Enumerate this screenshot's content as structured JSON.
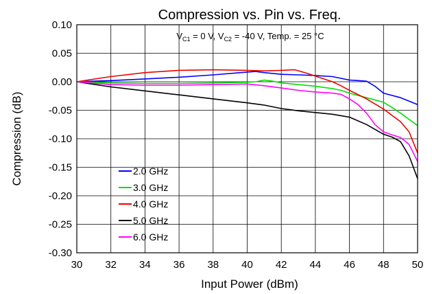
{
  "chart_data": {
    "type": "line",
    "title": "Compression vs. Pin vs. Freq.",
    "xlabel": "Input Power (dBm)",
    "ylabel": "Compression (dB)",
    "xlim": [
      30,
      50
    ],
    "ylim": [
      -0.3,
      0.1
    ],
    "xticks": [
      "30",
      "32",
      "34",
      "36",
      "38",
      "40",
      "42",
      "44",
      "46",
      "48",
      "50"
    ],
    "yticks": [
      "0.10",
      "0.05",
      "0.00",
      "-0.05",
      "-0.10",
      "-0.15",
      "-0.20",
      "-0.25",
      "-0.30"
    ],
    "grid": true,
    "legend_position": "lower-left",
    "annotation": {
      "prefix": "V",
      "sub1": "C1",
      "mid": " = 0 V, V",
      "sub2": "C2",
      "suffix": " = -40 V, Temp. = 25 °C"
    },
    "series": [
      {
        "name": "2.0 GHz",
        "color": "#0000ff",
        "points": [
          [
            30,
            0.0
          ],
          [
            32,
            0.002
          ],
          [
            34,
            0.005
          ],
          [
            36,
            0.008
          ],
          [
            38,
            0.012
          ],
          [
            40,
            0.017
          ],
          [
            40.5,
            0.018
          ],
          [
            41,
            0.016
          ],
          [
            42,
            0.013
          ],
          [
            43,
            0.012
          ],
          [
            44,
            0.011
          ],
          [
            45,
            0.009
          ],
          [
            46,
            0.003
          ],
          [
            46.5,
            0.002
          ],
          [
            47,
            0.001
          ],
          [
            47.5,
            -0.008
          ],
          [
            48,
            -0.02
          ],
          [
            49,
            -0.028
          ],
          [
            50,
            -0.04
          ]
        ]
      },
      {
        "name": "3.0 GHz",
        "color": "#00dd00",
        "points": [
          [
            30,
            0.0
          ],
          [
            32,
            -0.002
          ],
          [
            34,
            -0.003
          ],
          [
            36,
            -0.003
          ],
          [
            38,
            -0.002
          ],
          [
            40,
            -0.001
          ],
          [
            40.5,
            0.0
          ],
          [
            41,
            0.003
          ],
          [
            41.5,
            0.001
          ],
          [
            42,
            -0.002
          ],
          [
            44,
            -0.008
          ],
          [
            45,
            -0.012
          ],
          [
            45.5,
            -0.015
          ],
          [
            46,
            -0.02
          ],
          [
            47,
            -0.028
          ],
          [
            48,
            -0.036
          ],
          [
            48.5,
            -0.045
          ],
          [
            49,
            -0.055
          ],
          [
            50,
            -0.077
          ]
        ]
      },
      {
        "name": "4.0 GHz",
        "color": "#ee0000",
        "points": [
          [
            30,
            0.0
          ],
          [
            32,
            0.009
          ],
          [
            34,
            0.016
          ],
          [
            36,
            0.02
          ],
          [
            38,
            0.021
          ],
          [
            40,
            0.02
          ],
          [
            41,
            0.019
          ],
          [
            42,
            0.02
          ],
          [
            42.8,
            0.021
          ],
          [
            43.5,
            0.015
          ],
          [
            44.5,
            0.005
          ],
          [
            45,
            0.0
          ],
          [
            45.5,
            -0.007
          ],
          [
            46,
            -0.015
          ],
          [
            47,
            -0.03
          ],
          [
            48,
            -0.048
          ],
          [
            49,
            -0.07
          ],
          [
            49.5,
            -0.088
          ],
          [
            50,
            -0.125
          ]
        ]
      },
      {
        "name": "5.0 GHz",
        "color": "#000000",
        "points": [
          [
            30,
            0.0
          ],
          [
            32,
            -0.009
          ],
          [
            34,
            -0.016
          ],
          [
            36,
            -0.023
          ],
          [
            38,
            -0.03
          ],
          [
            40,
            -0.037
          ],
          [
            41,
            -0.041
          ],
          [
            42,
            -0.047
          ],
          [
            43,
            -0.051
          ],
          [
            44,
            -0.054
          ],
          [
            45,
            -0.057
          ],
          [
            46,
            -0.062
          ],
          [
            47,
            -0.075
          ],
          [
            48,
            -0.092
          ],
          [
            48.5,
            -0.097
          ],
          [
            49,
            -0.105
          ],
          [
            49.5,
            -0.13
          ],
          [
            50,
            -0.17
          ]
        ]
      },
      {
        "name": "6.0 GHz",
        "color": "#ff00ff",
        "points": [
          [
            30,
            0.0
          ],
          [
            32,
            -0.005
          ],
          [
            34,
            -0.006
          ],
          [
            36,
            -0.006
          ],
          [
            38,
            -0.005
          ],
          [
            40,
            -0.004
          ],
          [
            41,
            -0.007
          ],
          [
            42,
            -0.011
          ],
          [
            43,
            -0.015
          ],
          [
            44,
            -0.018
          ],
          [
            45,
            -0.02
          ],
          [
            45.5,
            -0.022
          ],
          [
            46,
            -0.03
          ],
          [
            46.5,
            -0.04
          ],
          [
            47,
            -0.055
          ],
          [
            47.5,
            -0.075
          ],
          [
            48,
            -0.088
          ],
          [
            48.5,
            -0.093
          ],
          [
            49,
            -0.098
          ],
          [
            49.5,
            -0.11
          ],
          [
            50,
            -0.14
          ]
        ]
      }
    ]
  }
}
